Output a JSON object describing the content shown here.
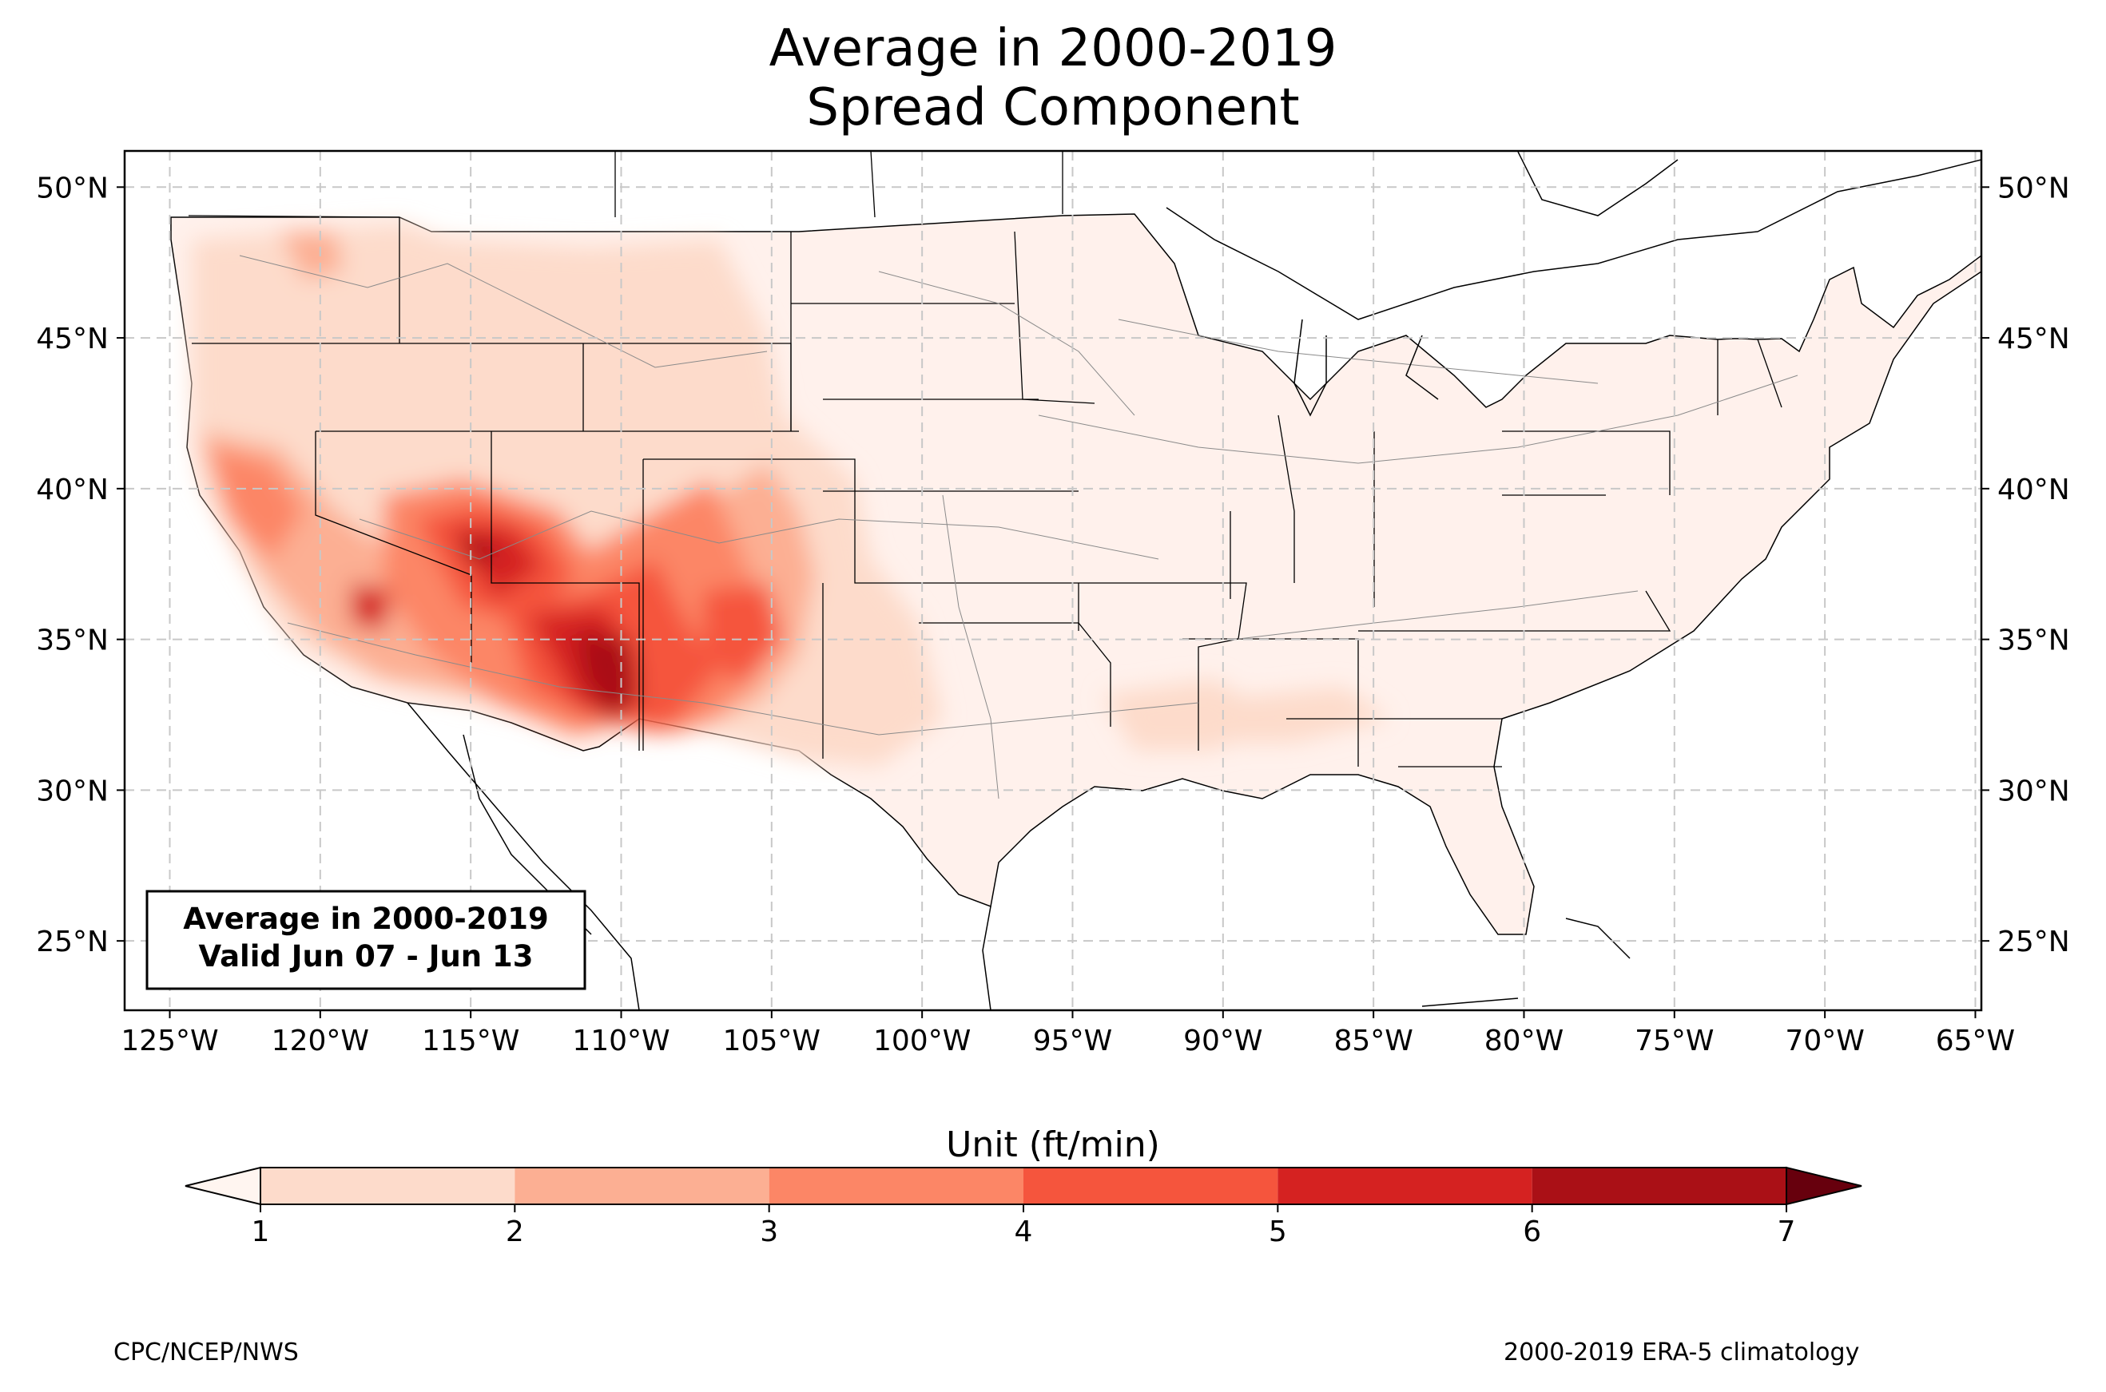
{
  "header": {
    "title_line1": "Average in 2000-2019",
    "title_line2": "Spread Component"
  },
  "map": {
    "lon_range": [
      -126.5,
      -64.8
    ],
    "lat_range": [
      22.7,
      51.2
    ],
    "lon_ticks": [
      {
        "v": -125,
        "label": "125°W"
      },
      {
        "v": -120,
        "label": "120°W"
      },
      {
        "v": -115,
        "label": "115°W"
      },
      {
        "v": -110,
        "label": "110°W"
      },
      {
        "v": -105,
        "label": "105°W"
      },
      {
        "v": -100,
        "label": "100°W"
      },
      {
        "v": -95,
        "label": "95°W"
      },
      {
        "v": -90,
        "label": "90°W"
      },
      {
        "v": -85,
        "label": "85°W"
      },
      {
        "v": -80,
        "label": "80°W"
      },
      {
        "v": -75,
        "label": "75°W"
      },
      {
        "v": -70,
        "label": "70°W"
      },
      {
        "v": -65,
        "label": "65°W"
      }
    ],
    "lat_ticks": [
      {
        "v": 25,
        "label": "25°N"
      },
      {
        "v": 30,
        "label": "30°N"
      },
      {
        "v": 35,
        "label": "35°N"
      },
      {
        "v": 40,
        "label": "40°N"
      },
      {
        "v": 45,
        "label": "45°N"
      },
      {
        "v": 50,
        "label": "50°N"
      }
    ],
    "grid": true,
    "annotation": {
      "line1": "Average in 2000-2019",
      "line2": "Valid Jun 07 - Jun 13",
      "placement": "bottom-left"
    }
  },
  "colorbar": {
    "label": "Unit (ft/min)",
    "levels": [
      1,
      2,
      3,
      4,
      5,
      6,
      7
    ],
    "tick_labels": [
      "1",
      "2",
      "3",
      "4",
      "5",
      "6",
      "7"
    ],
    "colors": [
      "#fddbcb",
      "#fcaf93",
      "#fc8666",
      "#f5553d",
      "#d52221",
      "#aa1016"
    ],
    "under_color": "#fff5f0",
    "over_color": "#67000d",
    "extend": "both"
  },
  "footer": {
    "left": "CPC/NCEP/NWS",
    "right": "2000-2019 ERA-5 climatology"
  }
}
